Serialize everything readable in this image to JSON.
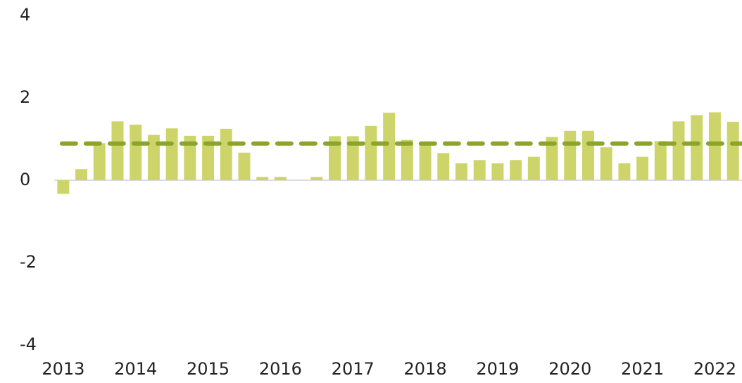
{
  "chart_data": {
    "type": "bar",
    "categories": [
      "2013",
      null,
      null,
      null,
      "2014",
      null,
      null,
      null,
      "2015",
      null,
      null,
      null,
      "2016",
      null,
      null,
      null,
      "2017",
      null,
      null,
      null,
      "2018",
      null,
      null,
      null,
      "2019",
      null,
      null,
      null,
      "2020",
      null,
      null,
      null,
      "2021",
      null,
      null,
      null,
      "2022",
      null
    ],
    "values": [
      -0.33,
      0.27,
      0.9,
      1.43,
      1.35,
      1.1,
      1.26,
      1.08,
      1.08,
      1.25,
      0.67,
      0.08,
      0.08,
      0,
      0.08,
      1.07,
      1.07,
      1.32,
      1.64,
      0.98,
      0.88,
      0.66,
      0.41,
      0.49,
      0.41,
      0.49,
      0.57,
      1.05,
      1.2,
      1.2,
      0.8,
      0.41,
      0.57,
      0.95,
      1.43,
      1.58,
      1.65,
      1.42
    ],
    "color": "#cdd56a",
    "reference_line": {
      "value": 0.89,
      "color": "#8aa52a"
    },
    "ylim": [
      -4,
      4
    ],
    "yticks": [
      -4,
      -2,
      0,
      2,
      4
    ],
    "grid": false
  }
}
